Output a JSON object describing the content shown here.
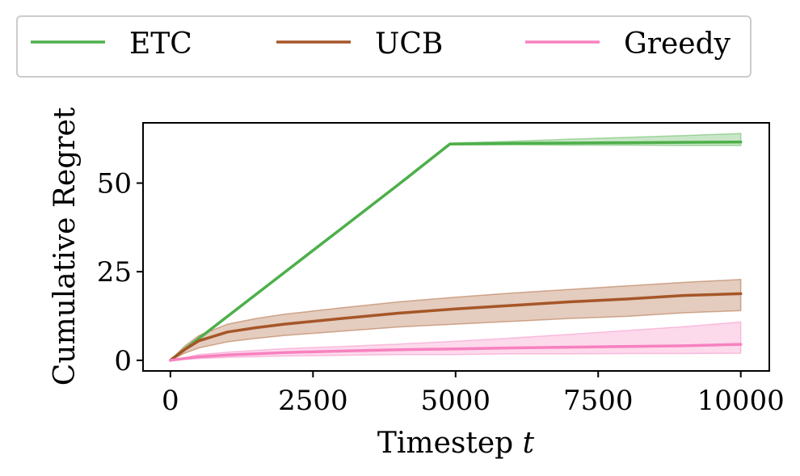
{
  "chart_data": {
    "type": "line",
    "title": "",
    "xlabel": "Timestep",
    "xlabel_var": "t",
    "ylabel": "Cumulative Regret",
    "xlim": [
      -480,
      10500
    ],
    "ylim": [
      -3,
      67
    ],
    "xticks": [
      0,
      2500,
      5000,
      7500,
      10000
    ],
    "xtick_labels": [
      "0",
      "2500",
      "5000",
      "7500",
      "10000"
    ],
    "yticks": [
      0,
      25,
      50
    ],
    "ytick_labels": [
      "0",
      "25",
      "50"
    ],
    "grid": false,
    "legend": {
      "placement": "top-center-outside",
      "entries": [
        "ETC",
        "UCB",
        "Greedy"
      ]
    },
    "series": [
      {
        "name": "ETC",
        "color": "#4daf4a",
        "x": [
          0,
          500,
          1000,
          2000,
          3000,
          4000,
          4900,
          6000,
          7000,
          8000,
          9000,
          10000
        ],
        "y": [
          0,
          6.2,
          12.4,
          24.8,
          37.2,
          49.6,
          61,
          61.2,
          61.3,
          61.4,
          61.5,
          61.6
        ],
        "lower": [
          0,
          6.0,
          12.2,
          24.6,
          37.0,
          49.4,
          60.8,
          60.8,
          60.7,
          60.7,
          60.6,
          60.6
        ],
        "upper": [
          0,
          6.4,
          12.6,
          25.0,
          37.4,
          49.8,
          61.3,
          61.8,
          62.4,
          62.9,
          63.4,
          64.0
        ]
      },
      {
        "name": "UCB",
        "color": "#a65628",
        "x": [
          0,
          250,
          500,
          1000,
          1500,
          2000,
          3000,
          4000,
          5000,
          6000,
          7000,
          8000,
          9000,
          10000
        ],
        "y": [
          0,
          3,
          5.5,
          8,
          9.2,
          10.2,
          11.8,
          13.3,
          14.5,
          15.5,
          16.5,
          17.3,
          18.3,
          18.8
        ],
        "lower": [
          0,
          2.0,
          3.5,
          5.2,
          6.2,
          7.0,
          8.2,
          9.4,
          10.2,
          11.0,
          11.8,
          12.4,
          13.4,
          14.0
        ],
        "upper": [
          0,
          4.0,
          7.0,
          10.2,
          11.8,
          13.0,
          14.8,
          16.5,
          17.8,
          19.0,
          20.0,
          21.0,
          22.0,
          22.8
        ]
      },
      {
        "name": "Greedy",
        "color": "#f781bf",
        "x": [
          0,
          500,
          1000,
          2000,
          3000,
          4000,
          5000,
          6000,
          7000,
          8000,
          9000,
          10000
        ],
        "y": [
          0,
          1.0,
          1.5,
          2.2,
          2.6,
          3.0,
          3.2,
          3.5,
          3.7,
          3.9,
          4.1,
          4.5
        ],
        "lower": [
          0,
          0.5,
          0.8,
          1.2,
          1.4,
          1.6,
          1.6,
          1.8,
          1.8,
          1.9,
          1.9,
          2.0
        ],
        "upper": [
          0,
          1.6,
          2.3,
          3.3,
          3.9,
          4.6,
          5.4,
          6.3,
          7.3,
          8.4,
          9.5,
          10.8
        ]
      }
    ]
  }
}
